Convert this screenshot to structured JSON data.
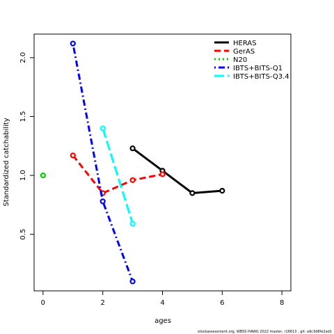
{
  "chart_data": {
    "type": "line",
    "title": "",
    "xlabel": "ages",
    "ylabel": "Standardized catchability",
    "xlim": [
      -0.3,
      8.3
    ],
    "ylim": [
      0.02,
      2.2
    ],
    "xticks": [
      0,
      2,
      4,
      6,
      8
    ],
    "yticks": [
      0.5,
      1.0,
      1.5,
      2.0
    ],
    "xtick_labels": [
      "0",
      "2",
      "4",
      "6",
      "8"
    ],
    "ytick_labels": [
      "0.5",
      "1.0",
      "1.5",
      "2.0"
    ],
    "grid": false,
    "legend_position": "top-right",
    "series": [
      {
        "name": "HERAS",
        "color": "#000000",
        "dash": "solid",
        "x": [
          3,
          4,
          5,
          6
        ],
        "y": [
          1.23,
          1.04,
          0.85,
          0.87
        ]
      },
      {
        "name": "GerAS",
        "color": "#ff0000",
        "dash": "dashed",
        "x": [
          1,
          2,
          3,
          4
        ],
        "y": [
          1.17,
          0.85,
          0.96,
          1.01
        ]
      },
      {
        "name": "N20",
        "color": "#00cd00",
        "dash": "dotted",
        "x": [
          0
        ],
        "y": [
          1.0
        ]
      },
      {
        "name": "IBTS+BITS-Q1",
        "color": "#0000ff",
        "dash": "dotdash",
        "x": [
          1,
          2,
          3
        ],
        "y": [
          2.12,
          0.78,
          0.1
        ]
      },
      {
        "name": "IBTS+BITS-Q3.4",
        "color": "#00ffff",
        "dash": "longdash",
        "x": [
          2,
          3
        ],
        "y": [
          1.4,
          0.59
        ]
      }
    ]
  },
  "footer_text": "stockassessment.org, WBSS HAWG 2022 master, r16613 , git: a9c3d8fe2ad1"
}
